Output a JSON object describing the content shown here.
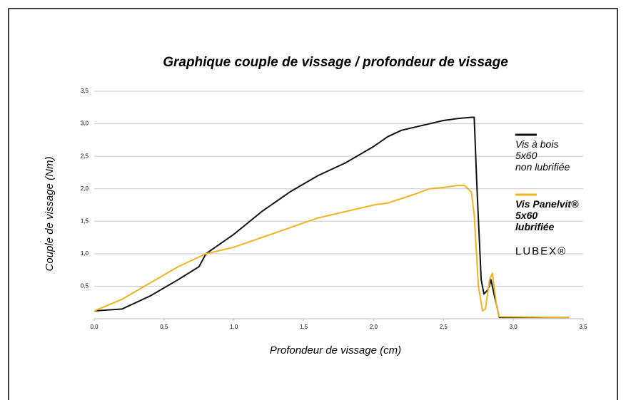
{
  "chart_data": {
    "type": "line",
    "title": "Graphique couple de vissage / profondeur de vissage",
    "xlabel": "Profondeur de vissage (cm)",
    "ylabel": "Couple de vissage (Nm)",
    "xlim": [
      0,
      3.5
    ],
    "ylim": [
      0,
      3.5
    ],
    "xticks": [
      {
        "value": 0,
        "label": "0,0"
      },
      {
        "value": 0.5,
        "label": "0,5"
      },
      {
        "value": 1,
        "label": "1,0"
      },
      {
        "value": 1.5,
        "label": "1,5"
      },
      {
        "value": 2,
        "label": "2,0"
      },
      {
        "value": 2.5,
        "label": "2,5"
      },
      {
        "value": 3,
        "label": "3,0"
      },
      {
        "value": 3.5,
        "label": "3,5"
      }
    ],
    "yticks": [
      {
        "value": 0.5,
        "label": "0,5"
      },
      {
        "value": 1,
        "label": "1,0"
      },
      {
        "value": 1.5,
        "label": "1,5"
      },
      {
        "value": 2,
        "label": "2,0"
      },
      {
        "value": 2.5,
        "label": "2,5"
      },
      {
        "value": 3,
        "label": "3,0"
      },
      {
        "value": 3.5,
        "label": "3,5"
      }
    ],
    "grid": true,
    "logo": "LUBEX®",
    "series": [
      {
        "name": "Vis à bois\n5x60\nnon lubrifiée",
        "color": "#111111",
        "x": [
          0,
          0.2,
          0.4,
          0.6,
          0.75,
          0.8,
          1.0,
          1.2,
          1.4,
          1.6,
          1.8,
          2.0,
          2.1,
          2.2,
          2.4,
          2.5,
          2.6,
          2.7,
          2.72,
          2.74,
          2.77,
          2.79,
          2.82,
          2.84,
          2.87,
          2.9,
          3.0,
          3.4
        ],
        "values": [
          0.12,
          0.15,
          0.35,
          0.6,
          0.8,
          1.0,
          1.3,
          1.65,
          1.95,
          2.2,
          2.4,
          2.65,
          2.8,
          2.9,
          3.0,
          3.05,
          3.08,
          3.1,
          3.1,
          2.0,
          0.6,
          0.38,
          0.45,
          0.6,
          0.3,
          0.02,
          0.02,
          0.02
        ]
      },
      {
        "name": "Vis Panelvit®\n5x60\nlubrifiée",
        "color": "#f0b323",
        "x": [
          0,
          0.2,
          0.4,
          0.6,
          0.8,
          1.0,
          1.2,
          1.4,
          1.6,
          1.8,
          2.0,
          2.1,
          2.2,
          2.3,
          2.4,
          2.5,
          2.6,
          2.65,
          2.7,
          2.72,
          2.75,
          2.78,
          2.8,
          2.83,
          2.85,
          2.88,
          2.9,
          3.4
        ],
        "values": [
          0.12,
          0.3,
          0.55,
          0.8,
          1.0,
          1.1,
          1.25,
          1.4,
          1.55,
          1.65,
          1.75,
          1.78,
          1.85,
          1.92,
          2.0,
          2.02,
          2.05,
          2.05,
          1.95,
          1.6,
          0.5,
          0.12,
          0.15,
          0.6,
          0.7,
          0.2,
          0.03,
          0.02
        ]
      }
    ]
  }
}
